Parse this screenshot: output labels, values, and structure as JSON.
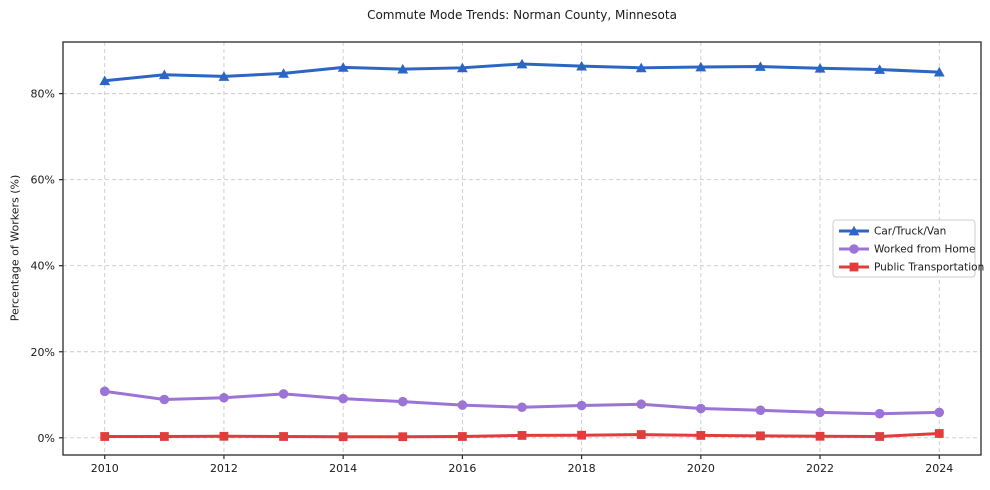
{
  "chart_data": {
    "type": "line",
    "title": "Commute Mode Trends: Norman County, Minnesota",
    "xlabel": "",
    "ylabel": "Percentage of Workers (%)",
    "x": [
      2010,
      2011,
      2012,
      2013,
      2014,
      2015,
      2016,
      2017,
      2018,
      2019,
      2020,
      2021,
      2022,
      2023,
      2024
    ],
    "series": [
      {
        "name": "Car/Truck/Van",
        "color": "#2c66c4",
        "marker": "triangle",
        "values": [
          83.0,
          84.4,
          84.0,
          84.7,
          86.1,
          85.7,
          86.0,
          86.9,
          86.4,
          86.0,
          86.2,
          86.3,
          85.9,
          85.6,
          85.0
        ]
      },
      {
        "name": "Worked from Home",
        "color": "#9b74d6",
        "marker": "circle",
        "values": [
          10.8,
          8.9,
          9.3,
          10.2,
          9.1,
          8.4,
          7.6,
          7.1,
          7.5,
          7.8,
          6.8,
          6.4,
          5.9,
          5.6,
          5.9
        ]
      },
      {
        "name": "Public Transportation",
        "color": "#e23d3d",
        "marker": "square",
        "values": [
          0.3,
          0.3,
          0.35,
          0.3,
          0.25,
          0.25,
          0.3,
          0.55,
          0.6,
          0.75,
          0.55,
          0.45,
          0.35,
          0.3,
          1.0
        ]
      }
    ],
    "xlim": [
      2009.3,
      2024.7
    ],
    "ylim": [
      -4,
      92
    ],
    "xticks": [
      2010,
      2012,
      2014,
      2016,
      2018,
      2020,
      2022,
      2024
    ],
    "xtick_labels": [
      "2010",
      "2012",
      "2014",
      "2016",
      "2018",
      "2020",
      "2022",
      "2024"
    ],
    "yticks": [
      0,
      20,
      40,
      60,
      80
    ],
    "ytick_labels": [
      "0%",
      "20%",
      "40%",
      "60%",
      "80%"
    ],
    "grid": true,
    "grid_style": "dashed",
    "legend_position": "center-right",
    "colors": {
      "grid": "#c9c9c9",
      "axis_border": "#2a2a2a",
      "tick_text": "#1a1a1a",
      "legend_border": "#cccccc",
      "background": "#ffffff"
    }
  }
}
